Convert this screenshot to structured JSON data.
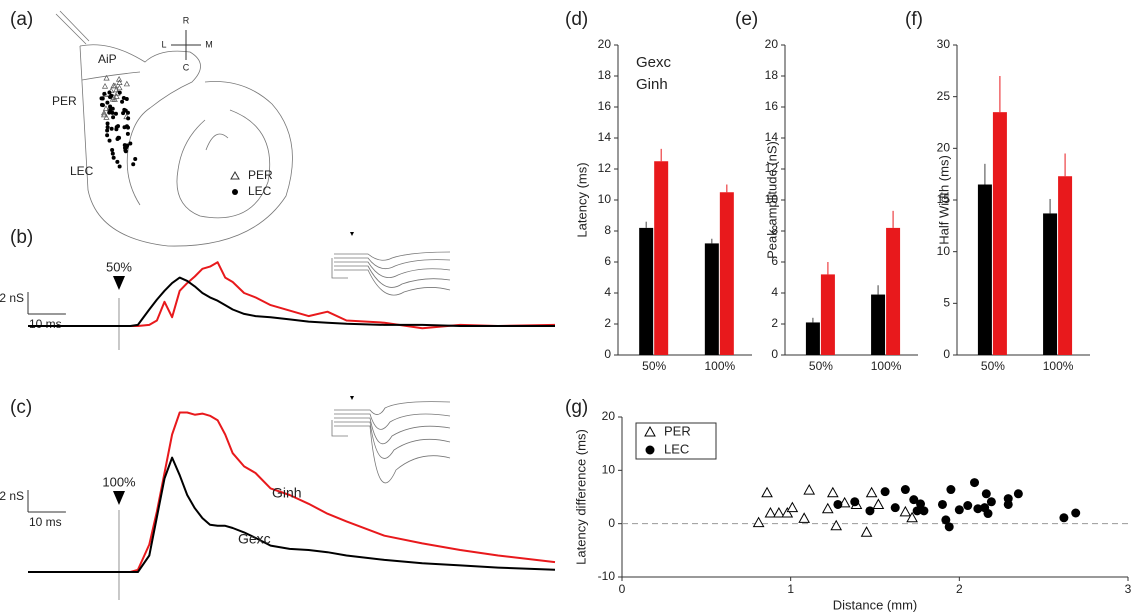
{
  "panel_a": {
    "panel_label": "(a)",
    "regions": {
      "aip": "AiP",
      "per": "PER",
      "lec": "LEC"
    },
    "compass": {
      "rostral": "R",
      "lateral": "L",
      "medial": "M",
      "caudal": "C"
    },
    "legend": [
      "PER",
      "LEC"
    ]
  },
  "chart_data": [
    {
      "type": "line",
      "panel_label": "(b)",
      "x": [
        -24,
        -10,
        -2,
        0,
        3,
        5,
        8,
        10,
        12,
        14,
        16,
        18,
        20,
        22,
        24,
        26,
        28,
        30,
        33,
        36,
        40,
        45,
        50,
        55,
        60,
        70,
        80,
        90,
        100,
        115
      ],
      "xlim": [
        -24,
        115
      ],
      "ylim": [
        -1,
        6.5
      ],
      "stimulus": {
        "x": 0,
        "label": "50%"
      },
      "scale_bar": {
        "x": {
          "value": 10,
          "label": "10 ms"
        },
        "y": {
          "value": 2,
          "label": "2 nS"
        }
      },
      "series": [
        {
          "color": "#e8191c",
          "values": [
            0,
            0,
            0,
            0,
            0,
            0,
            0.1,
            0.5,
            2.2,
            0.8,
            3.2,
            3.9,
            4.5,
            5.2,
            5.4,
            5.8,
            4.4,
            4.0,
            3.0,
            2.6,
            1.9,
            1.4,
            0.9,
            1.3,
            0.5,
            0.3,
            -0.2,
            0.1,
            0,
            0.1
          ]
        },
        {
          "color": "#000000",
          "values": [
            0,
            0,
            0,
            0,
            0,
            0.1,
            1.5,
            2.4,
            3.2,
            3.9,
            4.4,
            4.1,
            3.6,
            3.0,
            2.6,
            2.3,
            1.9,
            1.5,
            1.1,
            0.9,
            0.8,
            0.6,
            0.4,
            0.3,
            0.2,
            0.1,
            0.1,
            0,
            0,
            0
          ]
        }
      ]
    },
    {
      "type": "line",
      "panel_label": "(c)",
      "x": [
        -24,
        -10,
        -2,
        0,
        3,
        5,
        8,
        10,
        12,
        14,
        16,
        18,
        20,
        22,
        24,
        26,
        28,
        30,
        33,
        36,
        40,
        45,
        50,
        55,
        60,
        70,
        80,
        90,
        100,
        115
      ],
      "xlim": [
        -24,
        115
      ],
      "ylim": [
        -1,
        15
      ],
      "stimulus": {
        "x": 0,
        "label": "100%"
      },
      "scale_bar": {
        "x": {
          "value": 10,
          "label": "10 ms"
        },
        "y": {
          "value": 2,
          "label": "2 nS"
        }
      },
      "series": [
        {
          "name": "Ginh",
          "color": "#e8191c",
          "values": [
            0,
            0,
            0,
            0,
            0,
            0.2,
            2.5,
            5.5,
            9.0,
            12.5,
            14.5,
            14.5,
            14.3,
            14.4,
            14.2,
            13.8,
            12.5,
            10.8,
            9.6,
            9.0,
            7.6,
            7.0,
            6.2,
            5.3,
            4.6,
            3.3,
            2.6,
            2.0,
            1.5,
            0.9
          ]
        },
        {
          "name": "Gexc",
          "color": "#000000",
          "values": [
            0,
            0,
            0,
            0,
            0,
            0,
            1.5,
            5.0,
            8.5,
            10.4,
            8.8,
            7.0,
            5.8,
            4.9,
            4.3,
            4.2,
            4.2,
            4.0,
            3.6,
            3.1,
            2.4,
            2.1,
            2.0,
            1.8,
            1.5,
            1.1,
            0.8,
            0.6,
            0.4,
            0.2
          ]
        }
      ]
    },
    {
      "type": "bar",
      "panel_label": "(d)",
      "ylabel": "Latency (ms)",
      "categories": [
        "50%",
        "100%"
      ],
      "ylim": [
        0,
        20
      ],
      "yticks": [
        0,
        2,
        4,
        6,
        8,
        10,
        12,
        14,
        16,
        18,
        20
      ],
      "legend": "upper left",
      "series": [
        {
          "name": "Gexc",
          "color": "#000000",
          "values": [
            8.2,
            7.2
          ],
          "errors": [
            0.4,
            0.3
          ]
        },
        {
          "name": "Ginh",
          "color": "#e8191c",
          "values": [
            12.5,
            10.5
          ],
          "errors": [
            0.8,
            0.5
          ]
        }
      ]
    },
    {
      "type": "bar",
      "panel_label": "(e)",
      "ylabel": "Peak amplitude (nS)",
      "categories": [
        "50%",
        "100%"
      ],
      "ylim": [
        0,
        20
      ],
      "yticks": [
        0,
        2,
        4,
        6,
        8,
        10,
        12,
        14,
        16,
        18,
        20
      ],
      "series": [
        {
          "color": "#000000",
          "values": [
            2.1,
            3.9
          ],
          "errors": [
            0.3,
            0.6
          ]
        },
        {
          "color": "#e8191c",
          "values": [
            5.2,
            8.2
          ],
          "errors": [
            0.8,
            1.1
          ]
        }
      ]
    },
    {
      "type": "bar",
      "panel_label": "(f)",
      "ylabel": "Half Width (ms)",
      "categories": [
        "50%",
        "100%"
      ],
      "ylim": [
        0,
        30
      ],
      "yticks": [
        0,
        5,
        10,
        15,
        20,
        25,
        30
      ],
      "series": [
        {
          "color": "#000000",
          "values": [
            16.5,
            13.7
          ],
          "errors": [
            2.0,
            1.4
          ]
        },
        {
          "color": "#e8191c",
          "values": [
            23.5,
            17.3
          ],
          "errors": [
            3.5,
            2.2
          ]
        }
      ]
    },
    {
      "type": "scatter",
      "panel_label": "(g)",
      "xlabel": "Distance (mm)",
      "ylabel": "Latency difference (ms)",
      "xlim": [
        0,
        3
      ],
      "ylim": [
        -10,
        20
      ],
      "xticks": [
        0,
        1,
        2,
        3
      ],
      "yticks": [
        -10,
        0,
        10,
        20
      ],
      "hline": 0,
      "legend": "upper left",
      "series": [
        {
          "name": "PER",
          "marker": "triangle",
          "color": "#000000",
          "x": [
            0.81,
            0.86,
            0.88,
            0.93,
            0.98,
            1.01,
            1.08,
            1.11,
            1.22,
            1.25,
            1.27,
            1.32,
            1.39,
            1.45,
            1.48,
            1.52,
            1.68,
            1.72
          ],
          "values": [
            0.2,
            5.8,
            2,
            2,
            2,
            3,
            1,
            6.3,
            2.8,
            5.8,
            -0.4,
            3.9,
            3.6,
            -1.6,
            5.8,
            3.6,
            2.2,
            1.1
          ]
        },
        {
          "name": "LEC",
          "marker": "circle",
          "color": "#000000",
          "x": [
            1.28,
            1.38,
            1.47,
            1.56,
            1.62,
            1.68,
            1.73,
            1.75,
            1.77,
            1.79,
            1.9,
            1.92,
            1.94,
            1.95,
            2.0,
            2.05,
            2.09,
            2.11,
            2.15,
            2.16,
            2.17,
            2.19,
            2.29,
            2.29,
            2.35,
            2.62,
            2.69
          ],
          "values": [
            3.6,
            4.1,
            2.4,
            6,
            3,
            6.4,
            4.5,
            2.4,
            3.7,
            2.4,
            3.6,
            0.7,
            -0.6,
            6.4,
            2.6,
            3.4,
            7.7,
            2.8,
            3,
            5.6,
            1.9,
            4.1,
            3.6,
            4.7,
            5.6,
            1.1,
            2
          ]
        }
      ]
    }
  ]
}
